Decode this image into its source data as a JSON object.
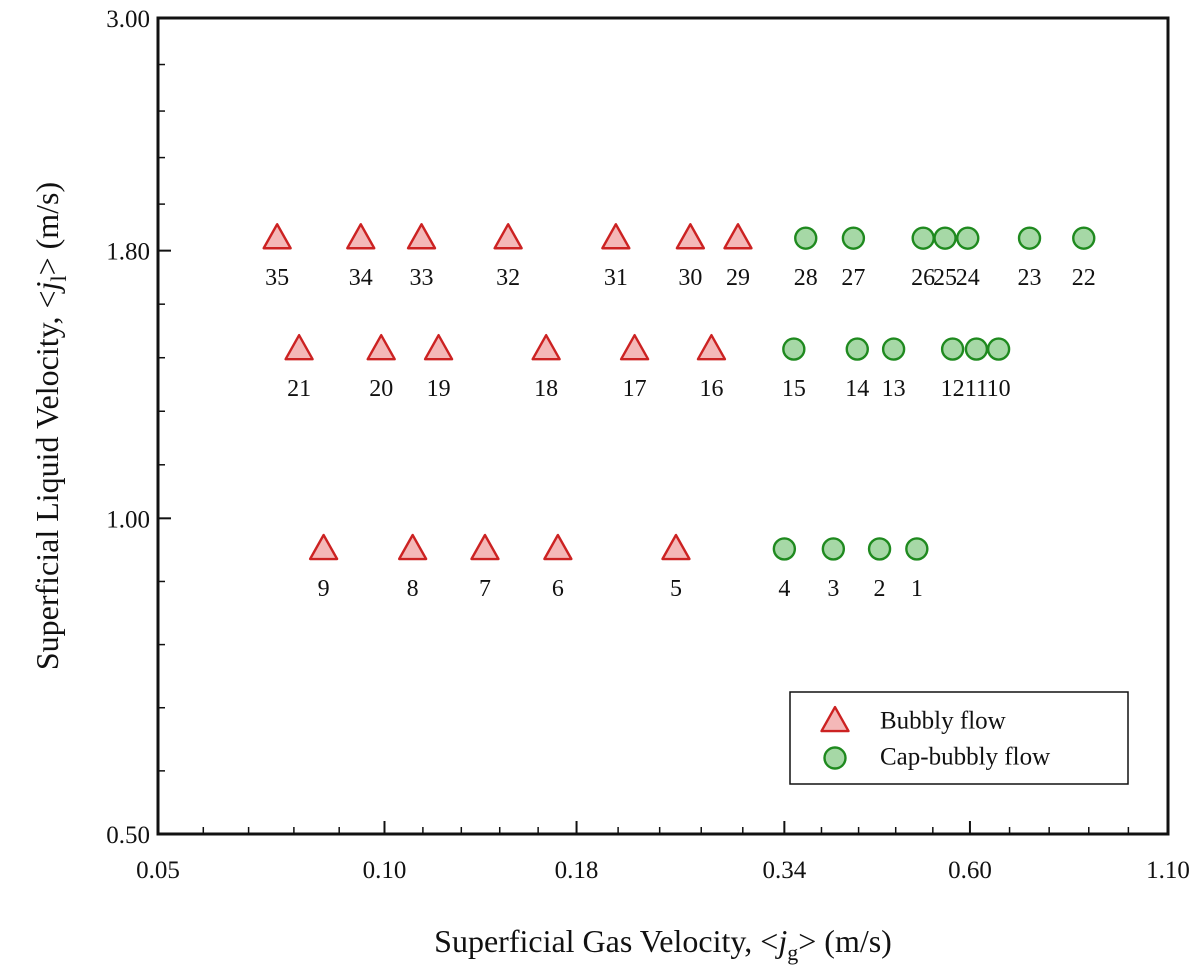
{
  "chart_data": {
    "type": "scatter",
    "xscale": "log",
    "yscale": "log",
    "xlim": [
      0.05,
      1.1
    ],
    "ylim": [
      0.5,
      3.0
    ],
    "xticks": [
      0.05,
      0.1,
      0.18,
      0.34,
      0.6,
      1.1
    ],
    "xtick_labels": [
      "0.05",
      "0.10",
      "0.18",
      "0.34",
      "0.60",
      "1.10"
    ],
    "yticks": [
      0.5,
      1.0,
      1.8,
      3.0
    ],
    "ytick_labels": [
      "0.50",
      "1.00",
      "1.80",
      "3.00"
    ],
    "xlabel": {
      "prefix": "Superficial Gas Velocity, <",
      "sym": "j",
      "sub": "g",
      "suffix": "> (m/s)"
    },
    "ylabel": {
      "prefix": "Superficial Liquid Velocity, <",
      "sym": "j",
      "sub": "l",
      "suffix": "> (m/s)"
    },
    "legend_position": "bottom-right",
    "grid": false,
    "series": [
      {
        "name": "Bubbly flow",
        "marker": "triangle",
        "fill": "#f4b8b8",
        "stroke": "#cc2222",
        "points": [
          {
            "id": "5",
            "x": 0.244,
            "y": 0.935
          },
          {
            "id": "6",
            "x": 0.17,
            "y": 0.935
          },
          {
            "id": "7",
            "x": 0.136,
            "y": 0.935
          },
          {
            "id": "8",
            "x": 0.109,
            "y": 0.935
          },
          {
            "id": "9",
            "x": 0.083,
            "y": 0.935
          },
          {
            "id": "16",
            "x": 0.272,
            "y": 1.45
          },
          {
            "id": "17",
            "x": 0.215,
            "y": 1.45
          },
          {
            "id": "18",
            "x": 0.164,
            "y": 1.45
          },
          {
            "id": "19",
            "x": 0.118,
            "y": 1.45
          },
          {
            "id": "20",
            "x": 0.099,
            "y": 1.45
          },
          {
            "id": "21",
            "x": 0.077,
            "y": 1.45
          },
          {
            "id": "29",
            "x": 0.295,
            "y": 1.85
          },
          {
            "id": "30",
            "x": 0.255,
            "y": 1.85
          },
          {
            "id": "31",
            "x": 0.203,
            "y": 1.85
          },
          {
            "id": "32",
            "x": 0.146,
            "y": 1.85
          },
          {
            "id": "33",
            "x": 0.112,
            "y": 1.85
          },
          {
            "id": "34",
            "x": 0.093,
            "y": 1.85
          },
          {
            "id": "35",
            "x": 0.072,
            "y": 1.85
          }
        ]
      },
      {
        "name": "Cap-bubbly flow",
        "marker": "circle",
        "fill": "#a6d8a6",
        "stroke": "#1f8a1f",
        "points": [
          {
            "id": "1",
            "x": 0.51,
            "y": 0.935
          },
          {
            "id": "2",
            "x": 0.455,
            "y": 0.935
          },
          {
            "id": "3",
            "x": 0.395,
            "y": 0.935
          },
          {
            "id": "4",
            "x": 0.34,
            "y": 0.935
          },
          {
            "id": "10",
            "x": 0.655,
            "y": 1.45
          },
          {
            "id": "11",
            "x": 0.612,
            "y": 1.45
          },
          {
            "id": "12",
            "x": 0.569,
            "y": 1.45
          },
          {
            "id": "13",
            "x": 0.475,
            "y": 1.45
          },
          {
            "id": "14",
            "x": 0.425,
            "y": 1.45
          },
          {
            "id": "15",
            "x": 0.35,
            "y": 1.45
          },
          {
            "id": "22",
            "x": 0.85,
            "y": 1.85
          },
          {
            "id": "23",
            "x": 0.72,
            "y": 1.85
          },
          {
            "id": "24",
            "x": 0.596,
            "y": 1.85
          },
          {
            "id": "25",
            "x": 0.556,
            "y": 1.85
          },
          {
            "id": "26",
            "x": 0.52,
            "y": 1.85
          },
          {
            "id": "27",
            "x": 0.42,
            "y": 1.85
          },
          {
            "id": "28",
            "x": 0.363,
            "y": 1.85
          }
        ]
      }
    ]
  }
}
